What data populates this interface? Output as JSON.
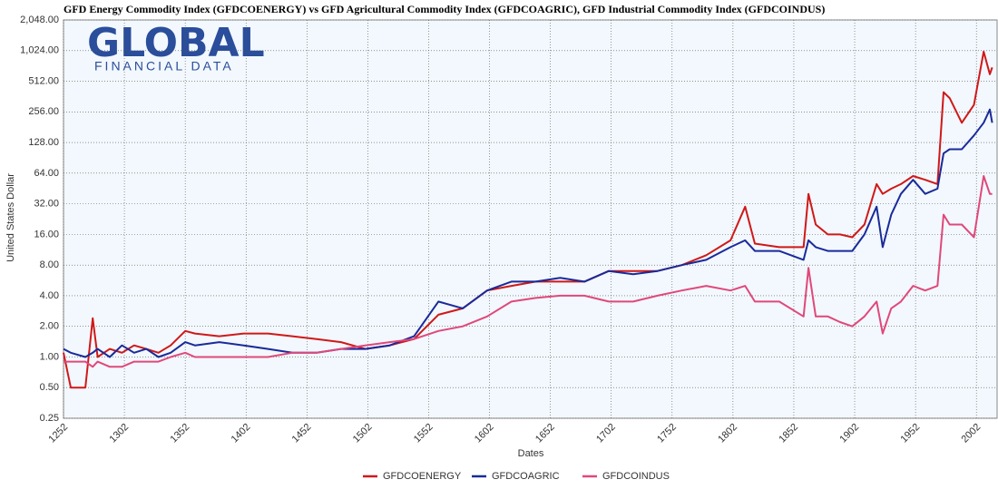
{
  "logo": {
    "name": "GLOBAL",
    "tagline": "FINANCIAL DATA"
  },
  "chart_data": {
    "type": "line",
    "title": "GFD Energy Commodity Index (GFDCOENERGY)  vs  GFD Agricultural Commodity Index (GFDCOAGRIC), GFD Industrial Commodity Index (GFDCOINDUS)",
    "x_label": "Dates",
    "y_label": "United States Dollar",
    "yscale": "log",
    "grid": true,
    "legend": "bottom",
    "xlim": [
      1252,
      2019
    ],
    "xticks": [
      1252,
      1302,
      1352,
      1402,
      1452,
      1502,
      1552,
      1602,
      1652,
      1702,
      1752,
      1802,
      1852,
      1902,
      1952,
      2002
    ],
    "ylim": [
      0.25,
      2048
    ],
    "yticks": [
      {
        "value": 0.25,
        "label": "0.25"
      },
      {
        "value": 0.5,
        "label": "0.50"
      },
      {
        "value": 1,
        "label": "1.00"
      },
      {
        "value": 2,
        "label": "2.00"
      },
      {
        "value": 4,
        "label": "4.00"
      },
      {
        "value": 8,
        "label": "8.00"
      },
      {
        "value": 16,
        "label": "16.00"
      },
      {
        "value": 32,
        "label": "32.00"
      },
      {
        "value": 64,
        "label": "64.00"
      },
      {
        "value": 128,
        "label": "128.00"
      },
      {
        "value": 256,
        "label": "256.00"
      },
      {
        "value": 512,
        "label": "512.00"
      },
      {
        "value": 1024,
        "label": "1,024.00"
      },
      {
        "value": 2048,
        "label": "2,048.00"
      }
    ],
    "x": [
      1252,
      1258,
      1270,
      1276,
      1280,
      1290,
      1300,
      1310,
      1320,
      1330,
      1340,
      1352,
      1360,
      1380,
      1400,
      1420,
      1440,
      1460,
      1480,
      1500,
      1520,
      1540,
      1560,
      1580,
      1600,
      1620,
      1640,
      1660,
      1680,
      1700,
      1720,
      1740,
      1760,
      1780,
      1800,
      1812,
      1820,
      1840,
      1860,
      1864,
      1870,
      1880,
      1890,
      1900,
      1910,
      1920,
      1925,
      1932,
      1940,
      1950,
      1960,
      1970,
      1975,
      1980,
      1990,
      2000,
      2008,
      2013,
      2015
    ],
    "series": [
      {
        "name": "GFDCOENERGY",
        "color": "#d01818",
        "values": [
          1.1,
          0.5,
          0.5,
          2.4,
          1.0,
          1.2,
          1.1,
          1.3,
          1.2,
          1.1,
          1.3,
          1.8,
          1.7,
          1.6,
          1.7,
          1.7,
          1.6,
          1.5,
          1.4,
          1.2,
          1.3,
          1.5,
          2.6,
          3.0,
          4.5,
          5.0,
          5.5,
          5.5,
          5.5,
          7.0,
          7.0,
          7.0,
          8.0,
          10,
          14,
          30,
          13,
          12,
          12,
          40,
          20,
          16,
          16,
          15,
          20,
          50,
          40,
          45,
          50,
          60,
          55,
          50,
          400,
          350,
          200,
          300,
          1000,
          600,
          700
        ]
      },
      {
        "name": "GFDCOAGRIC",
        "color": "#1a2a9a",
        "values": [
          1.2,
          1.1,
          1.0,
          1.1,
          1.2,
          1.0,
          1.3,
          1.1,
          1.2,
          1.0,
          1.1,
          1.4,
          1.3,
          1.4,
          1.3,
          1.2,
          1.1,
          1.1,
          1.2,
          1.2,
          1.3,
          1.6,
          3.5,
          3.0,
          4.5,
          5.5,
          5.5,
          6.0,
          5.5,
          7.0,
          6.5,
          7.0,
          8.0,
          9.0,
          12,
          14,
          11,
          11,
          9,
          14,
          12,
          11,
          11,
          11,
          16,
          30,
          12,
          25,
          40,
          55,
          40,
          45,
          100,
          110,
          110,
          150,
          200,
          270,
          200
        ]
      },
      {
        "name": "GFDCOINDUS",
        "color": "#e0487a",
        "values": [
          0.9,
          0.9,
          0.9,
          0.8,
          0.9,
          0.8,
          0.8,
          0.9,
          0.9,
          0.9,
          1.0,
          1.1,
          1.0,
          1.0,
          1.0,
          1.0,
          1.1,
          1.1,
          1.2,
          1.3,
          1.4,
          1.5,
          1.8,
          2.0,
          2.5,
          3.5,
          3.8,
          4.0,
          4.0,
          3.5,
          3.5,
          4.0,
          4.5,
          5.0,
          4.5,
          5.0,
          3.5,
          3.5,
          2.5,
          7.5,
          2.5,
          2.5,
          2.2,
          2.0,
          2.5,
          3.5,
          1.7,
          3.0,
          3.5,
          5.0,
          4.5,
          5.0,
          25,
          20,
          20,
          15,
          60,
          40,
          40
        ]
      }
    ]
  }
}
